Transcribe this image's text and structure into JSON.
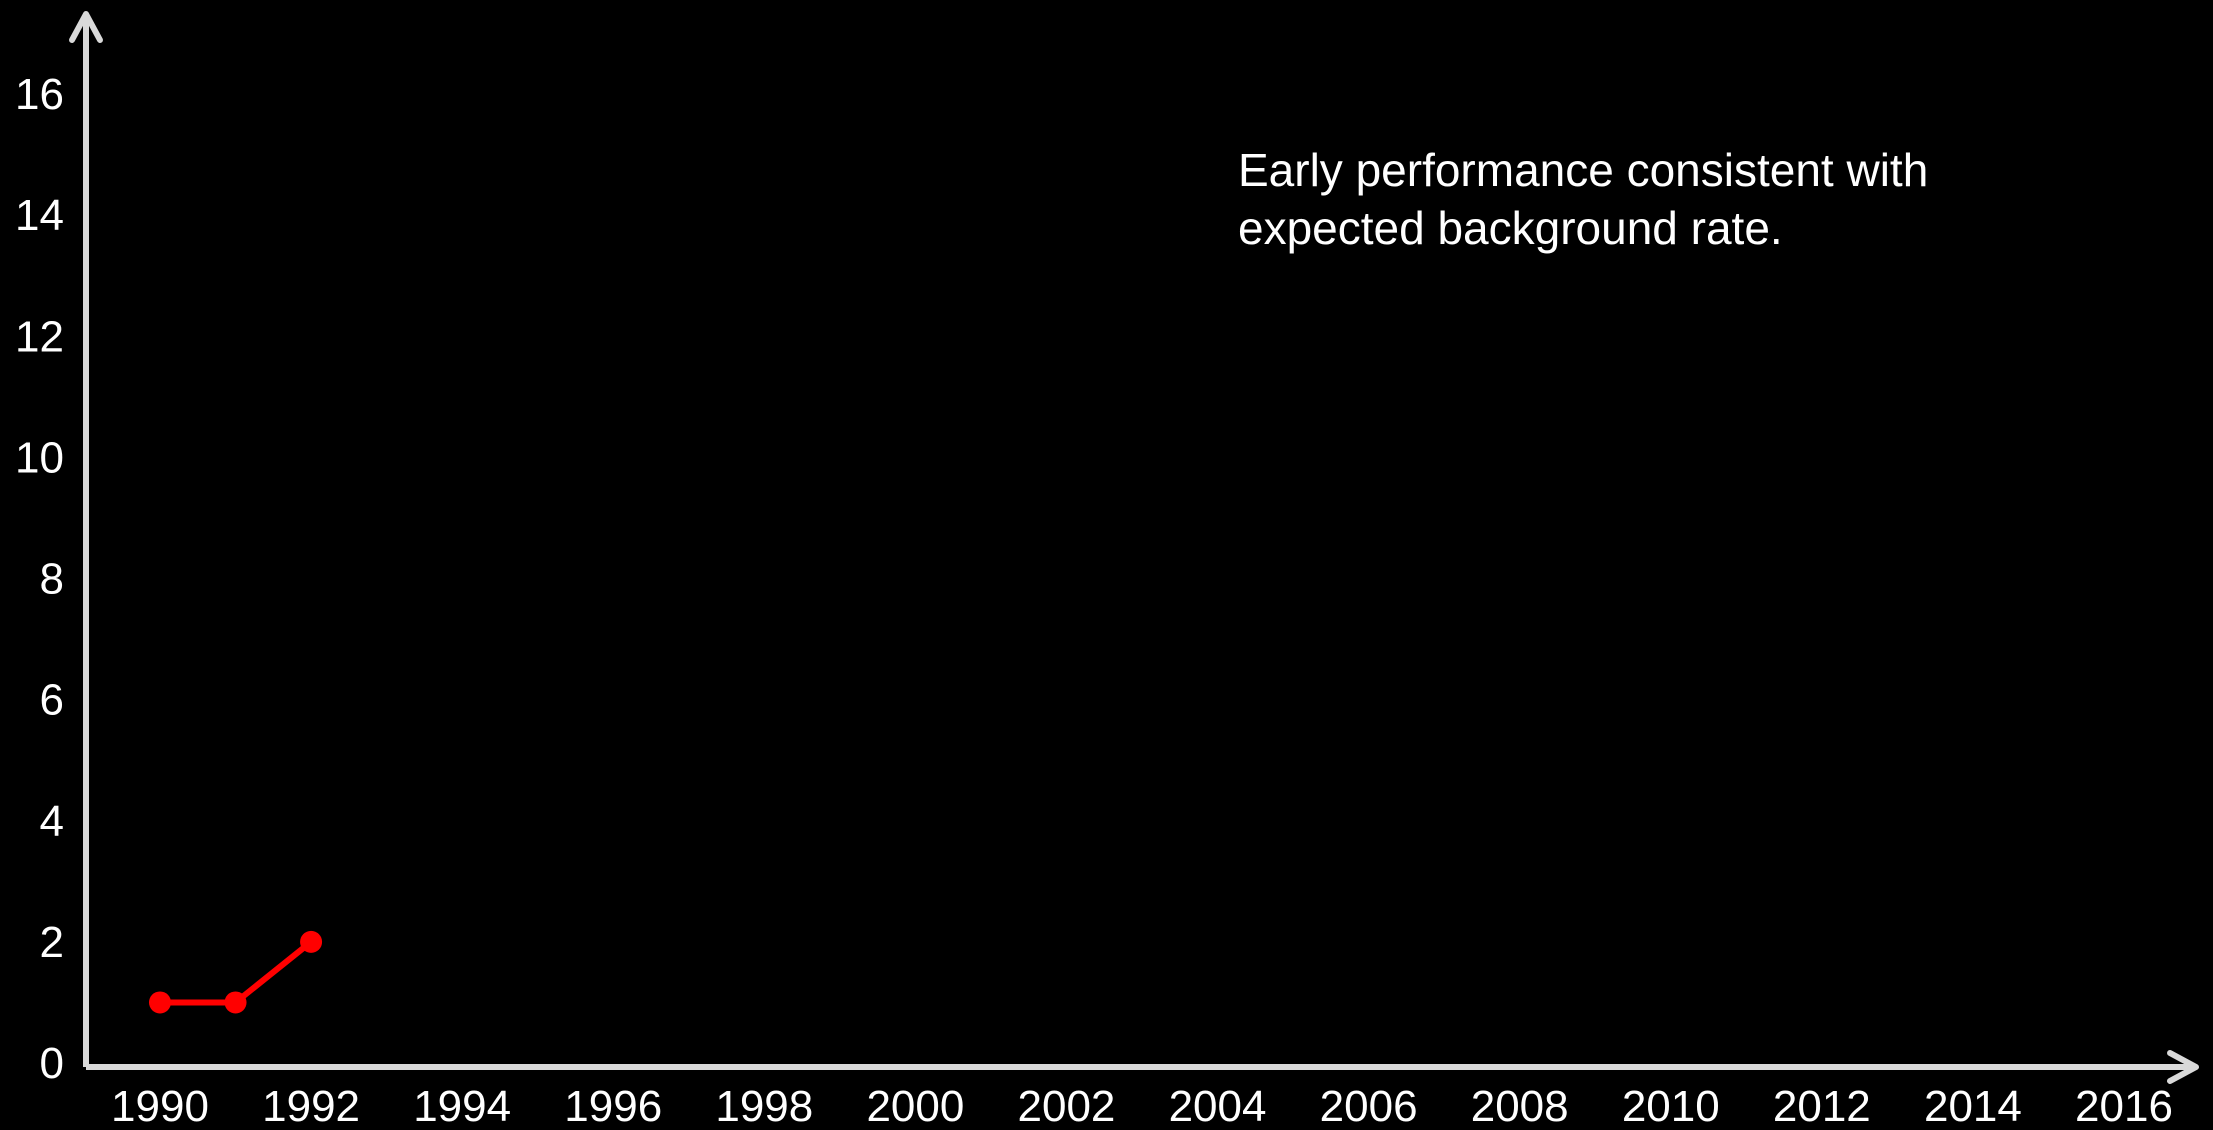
{
  "chart_data": {
    "type": "line",
    "title": "",
    "xlabel": "",
    "ylabel": "",
    "x_ticks": [
      "1990",
      "1992",
      "1994",
      "1996",
      "1998",
      "2000",
      "2002",
      "2004",
      "2006",
      "2008",
      "2010",
      "2012",
      "2014",
      "2016"
    ],
    "y_ticks": [
      "0",
      "2",
      "4",
      "6",
      "8",
      "10",
      "12",
      "14",
      "16"
    ],
    "xlim": [
      1990,
      2016
    ],
    "ylim": [
      0,
      16
    ],
    "grid": false,
    "legend": "none",
    "series": [
      {
        "color": "#ff0000",
        "x": [
          1990,
          1991,
          1992
        ],
        "y": [
          1,
          1,
          2
        ]
      }
    ],
    "annotation": {
      "lines": [
        "Early performance consistent with",
        "expected background rate."
      ]
    },
    "colors": {
      "background": "#000000",
      "axis": "#d9d9d9",
      "text": "#ffffff"
    }
  }
}
